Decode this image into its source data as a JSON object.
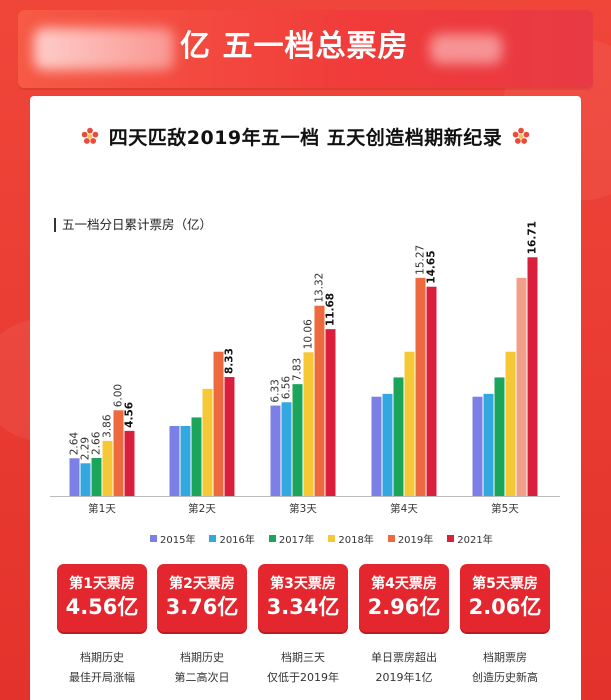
{
  "header": {
    "title": "亿 五一档总票房"
  },
  "subtitle": "四天匹敌2019年五一档 五天创造档期新纪录",
  "chart_data": {
    "type": "bar",
    "ylabel": "五一档分日累计票房（亿）",
    "categories": [
      "第1天",
      "第2天",
      "第3天",
      "第4天",
      "第5天"
    ],
    "ylim": [
      0,
      17.5
    ],
    "series": [
      {
        "name": "2015年",
        "color": "#7b7fe6",
        "values": [
          2.64,
          4.9,
          6.33,
          6.95,
          6.95
        ],
        "labels": [
          "2.64",
          "",
          "6.33",
          "",
          ""
        ]
      },
      {
        "name": "2016年",
        "color": "#33a7e0",
        "values": [
          2.29,
          4.9,
          6.56,
          7.15,
          7.15
        ],
        "labels": [
          "2.29",
          "",
          "6.56",
          "",
          ""
        ]
      },
      {
        "name": "2017年",
        "color": "#1aa55b",
        "values": [
          2.66,
          5.5,
          7.83,
          8.3,
          8.3
        ],
        "labels": [
          "2.66",
          "",
          "7.83",
          "",
          ""
        ]
      },
      {
        "name": "2018年",
        "color": "#f6c835",
        "values": [
          3.86,
          7.5,
          10.06,
          10.1,
          10.1
        ],
        "labels": [
          "3.86",
          "",
          "10.06",
          "",
          ""
        ]
      },
      {
        "name": "2019年",
        "color": "#ec6a3d",
        "values": [
          6.0,
          10.1,
          13.32,
          15.27,
          15.27
        ],
        "labels": [
          "6.00",
          "",
          "13.32",
          "15.27",
          ""
        ],
        "last_color": "#f29f8a"
      },
      {
        "name": "2021年",
        "color": "#da1f3d",
        "values": [
          4.56,
          8.33,
          11.68,
          14.65,
          16.71
        ],
        "labels": [
          "4.56",
          "8.33",
          "11.68",
          "14.65",
          "16.71"
        ]
      }
    ]
  },
  "boxes": [
    {
      "title": "第1天票房",
      "value": "4.56亿",
      "note1": "档期历史",
      "note2": "最佳开局涨幅"
    },
    {
      "title": "第2天票房",
      "value": "3.76亿",
      "note1": "档期历史",
      "note2": "第二高次日"
    },
    {
      "title": "第3天票房",
      "value": "3.34亿",
      "note1": "档期三天",
      "note2": "仅低于2019年"
    },
    {
      "title": "第4天票房",
      "value": "2.96亿",
      "note1": "单日票房超出",
      "note2": "2019年1亿"
    },
    {
      "title": "第5天票房",
      "value": "2.06亿",
      "note1": "档期票房",
      "note2": "创造历史新高"
    }
  ]
}
